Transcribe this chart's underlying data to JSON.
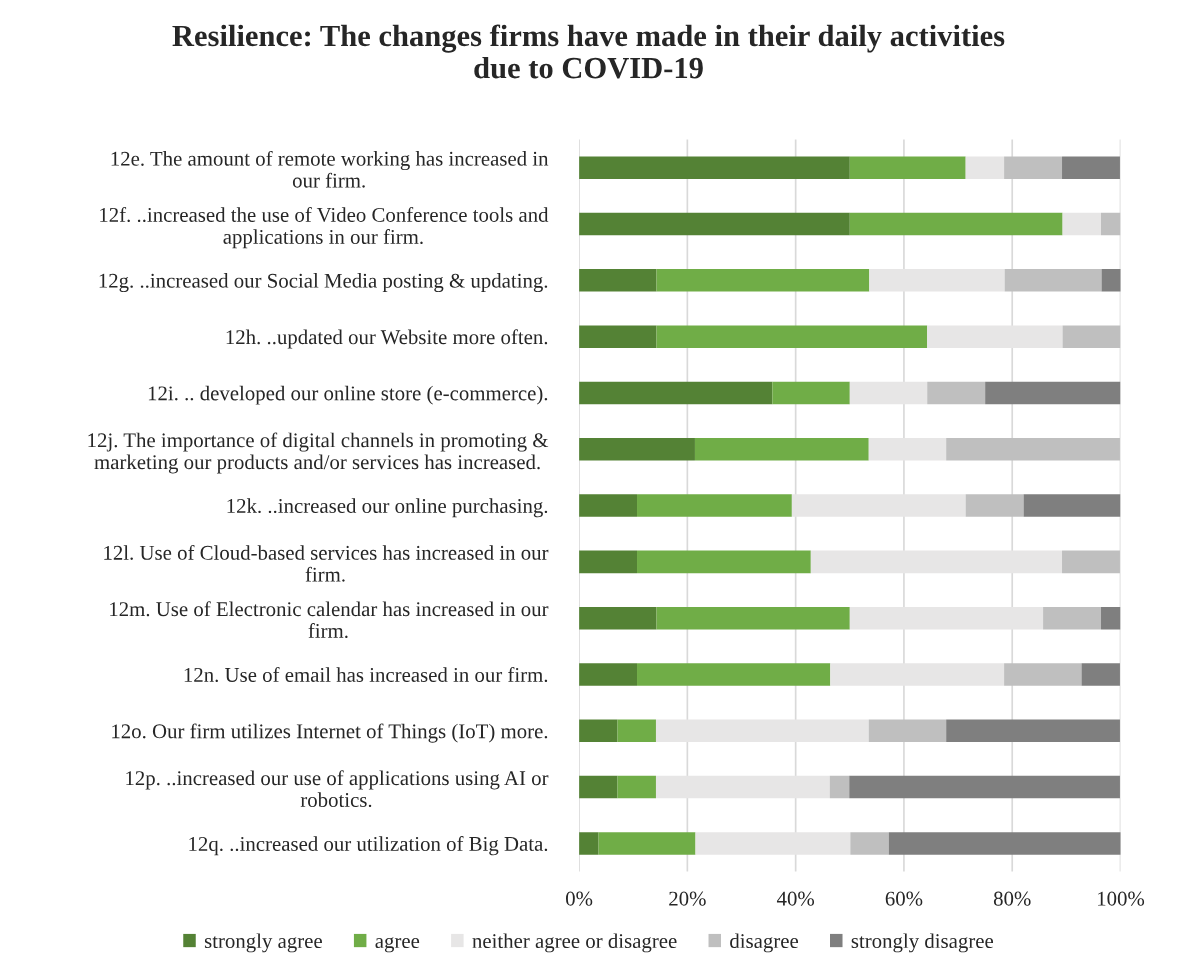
{
  "chart_data": {
    "type": "bar",
    "orientation": "horizontal",
    "stacked": true,
    "title": "Resilience: The changes firms have made in their daily activities\ndue to COVID-19",
    "categories": [
      "12e. The amount of remote working has increased in\nour firm.",
      "12f. ..increased the use of Video Conference tools and\napplications in our firm.",
      "12g. ..increased our Social Media posting & updating.",
      "12h. ..updated our Website more often.",
      "12i. .. developed our online store (e-commerce).",
      "12j. The importance of digital channels in promoting &\nmarketing our products and/or services has increased.",
      "12k. ..increased our online purchasing.",
      "12l. Use of Cloud-based services has increased in our\nfirm.",
      "12m. Use of Electronic calendar has increased in our\nfirm.",
      "12n. Use of email has increased in our firm.",
      "12o. Our firm utilizes Internet of Things (IoT) more.",
      "12p. ..increased our use of applications using AI or\nrobotics.",
      "12q. ..increased our utilization of Big Data."
    ],
    "series": [
      {
        "name": "strongly agree",
        "color": "#548235",
        "values": [
          50,
          50,
          14.3,
          14.3,
          35.7,
          21.4,
          10.7,
          10.7,
          14.3,
          10.7,
          7.1,
          7.1,
          3.6
        ]
      },
      {
        "name": "agree",
        "color": "#70ad47",
        "values": [
          21.4,
          39.3,
          39.3,
          50,
          14.3,
          32.1,
          28.6,
          32.1,
          35.7,
          35.7,
          7.1,
          7.1,
          17.9
        ]
      },
      {
        "name": "neither agree or disagree",
        "color": "#e7e6e6",
        "values": [
          7.1,
          7.1,
          25,
          25,
          14.3,
          14.3,
          32.1,
          46.4,
          35.7,
          32.1,
          39.3,
          32.1,
          28.6
        ]
      },
      {
        "name": "disagree",
        "color": "#bfbfbf",
        "values": [
          10.7,
          3.6,
          17.9,
          10.7,
          10.7,
          32.1,
          10.7,
          10.7,
          10.7,
          14.3,
          14.3,
          3.6,
          7.1
        ]
      },
      {
        "name": "strongly disagree",
        "color": "#7f7f7f",
        "values": [
          10.7,
          0,
          3.6,
          0,
          25,
          0,
          17.9,
          0,
          3.6,
          7.1,
          32.1,
          50,
          42.9
        ]
      }
    ],
    "xlim": [
      0,
      100
    ],
    "xticks": [
      {
        "value": 0,
        "label": "0%"
      },
      {
        "value": 20,
        "label": "20%"
      },
      {
        "value": 40,
        "label": "40%"
      },
      {
        "value": 60,
        "label": "60%"
      },
      {
        "value": 80,
        "label": "80%"
      },
      {
        "value": 100,
        "label": "100%"
      }
    ],
    "grid": "x",
    "legend": "bottom"
  }
}
